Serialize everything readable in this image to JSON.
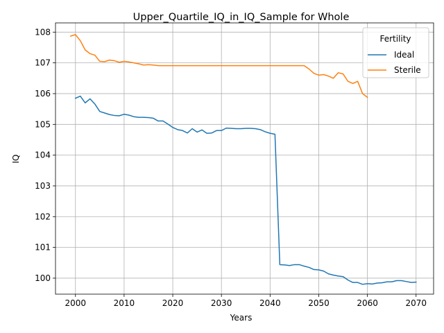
{
  "chart_data": {
    "type": "line",
    "title": "Upper_Quartile_IQ_in_IQ_Sample for Whole",
    "xlabel": "Years",
    "ylabel": "IQ",
    "xlim": [
      1995.9,
      2073.6
    ],
    "ylim": [
      99.48,
      108.3
    ],
    "xticks": [
      2000,
      2010,
      2020,
      2030,
      2040,
      2050,
      2060,
      2070
    ],
    "yticks": [
      100,
      101,
      102,
      103,
      104,
      105,
      106,
      107,
      108
    ],
    "grid": true,
    "legend": {
      "title": "Fertility",
      "placement": "top-right"
    },
    "series": [
      {
        "name": "Ideal",
        "color": "#1f77b4",
        "x": [
          2000,
          2001,
          2002,
          2003,
          2004,
          2005,
          2006,
          2007,
          2008,
          2009,
          2010,
          2011,
          2012,
          2013,
          2014,
          2015,
          2016,
          2017,
          2018,
          2019,
          2020,
          2021,
          2022,
          2023,
          2024,
          2025,
          2026,
          2027,
          2028,
          2029,
          2030,
          2031,
          2032,
          2033,
          2034,
          2035,
          2036,
          2037,
          2038,
          2039,
          2040,
          2041,
          2042,
          2043,
          2044,
          2045,
          2046,
          2047,
          2048,
          2049,
          2050,
          2051,
          2052,
          2053,
          2054,
          2055,
          2056,
          2057,
          2058,
          2059,
          2060,
          2061,
          2062,
          2063,
          2064,
          2065,
          2066,
          2067,
          2068,
          2069,
          2070
        ],
        "values": [
          105.85,
          105.92,
          105.7,
          105.83,
          105.66,
          105.42,
          105.37,
          105.32,
          105.29,
          105.28,
          105.33,
          105.3,
          105.25,
          105.23,
          105.23,
          105.22,
          105.2,
          105.11,
          105.11,
          105.01,
          104.9,
          104.83,
          104.8,
          104.72,
          104.86,
          104.75,
          104.82,
          104.71,
          104.72,
          104.8,
          104.8,
          104.88,
          104.87,
          104.86,
          104.86,
          104.87,
          104.87,
          104.86,
          104.83,
          104.76,
          104.71,
          104.68,
          100.44,
          100.43,
          100.41,
          100.44,
          100.44,
          100.39,
          100.35,
          100.28,
          100.27,
          100.23,
          100.14,
          100.1,
          100.07,
          100.05,
          99.94,
          99.86,
          99.86,
          99.8,
          99.82,
          99.81,
          99.84,
          99.85,
          99.88,
          99.88,
          99.92,
          99.92,
          99.89,
          99.86,
          99.87
        ]
      },
      {
        "name": "Sterile",
        "color": "#ff7f0e",
        "x": [
          1999,
          2000,
          2001,
          2002,
          2003,
          2004,
          2005,
          2006,
          2007,
          2008,
          2009,
          2010,
          2011,
          2012,
          2013,
          2014,
          2015,
          2016,
          2017,
          2018,
          2019,
          2020,
          2021,
          2022,
          2023,
          2024,
          2025,
          2026,
          2027,
          2028,
          2029,
          2030,
          2031,
          2032,
          2033,
          2034,
          2035,
          2036,
          2037,
          2038,
          2039,
          2040,
          2041,
          2042,
          2043,
          2044,
          2045,
          2046,
          2047,
          2048,
          2049,
          2050,
          2051,
          2052,
          2053,
          2054,
          2055,
          2056,
          2057,
          2058,
          2059,
          2060
        ],
        "values": [
          107.87,
          107.92,
          107.72,
          107.42,
          107.3,
          107.25,
          107.05,
          107.04,
          107.09,
          107.07,
          107.02,
          107.05,
          107.03,
          107.0,
          106.97,
          106.93,
          106.94,
          106.93,
          106.91,
          106.91,
          106.91,
          106.91,
          106.91,
          106.91,
          106.91,
          106.91,
          106.91,
          106.91,
          106.91,
          106.91,
          106.91,
          106.91,
          106.91,
          106.91,
          106.91,
          106.91,
          106.91,
          106.91,
          106.91,
          106.91,
          106.91,
          106.91,
          106.91,
          106.91,
          106.91,
          106.91,
          106.91,
          106.91,
          106.91,
          106.8,
          106.66,
          106.6,
          106.62,
          106.57,
          106.5,
          106.68,
          106.64,
          106.4,
          106.33,
          106.4,
          106.0,
          105.88
        ]
      }
    ]
  }
}
